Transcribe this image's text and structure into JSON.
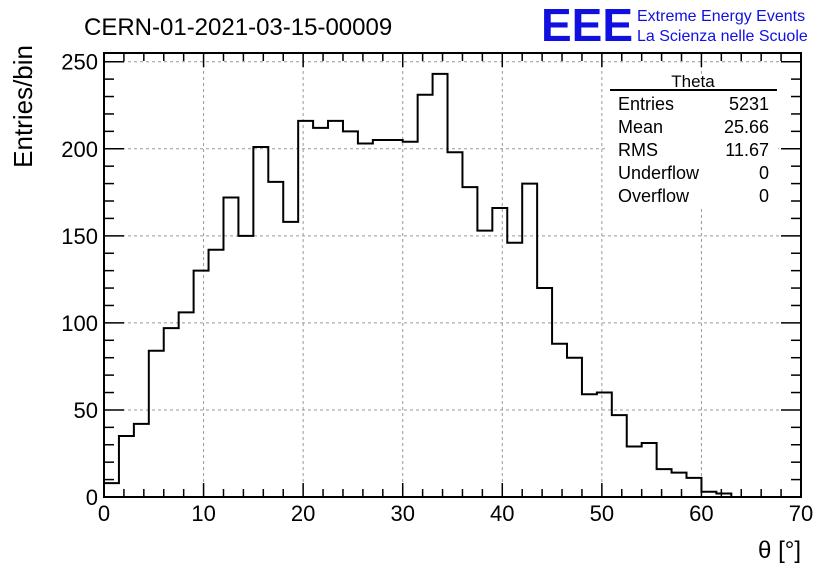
{
  "header": {
    "run_title": "CERN-01-2021-03-15-00009",
    "logo_text": "EEE",
    "logo_line1": "Extreme Energy Events",
    "logo_line2": "La Scienza nelle Scuole",
    "logo_color": "#1010e0"
  },
  "stats_box": {
    "title": "Theta",
    "rows": [
      {
        "label": "Entries",
        "value": "5231"
      },
      {
        "label": "Mean",
        "value": "25.66"
      },
      {
        "label": "RMS",
        "value": "11.67"
      },
      {
        "label": "Underflow",
        "value": "0"
      },
      {
        "label": "Overflow",
        "value": "0"
      }
    ]
  },
  "chart_data": {
    "type": "bar",
    "style": "step-histogram",
    "xlabel": "θ [°]",
    "ylabel": "Entries/bin",
    "xlim": [
      0,
      70
    ],
    "ylim": [
      0,
      255
    ],
    "bin_width": 1.5,
    "grid": true,
    "x_ticks": [
      0,
      10,
      20,
      30,
      40,
      50,
      60,
      70
    ],
    "y_ticks": [
      0,
      50,
      100,
      150,
      200,
      250
    ],
    "values": [
      8,
      35,
      42,
      84,
      97,
      106,
      130,
      142,
      172,
      150,
      201,
      181,
      158,
      216,
      212,
      216,
      210,
      203,
      205,
      205,
      204,
      231,
      243,
      198,
      178,
      153,
      166,
      146,
      180,
      120,
      88,
      80,
      59,
      60,
      47,
      29,
      31,
      16,
      14,
      11,
      3,
      2,
      0,
      0,
      0,
      0,
      0
    ]
  }
}
